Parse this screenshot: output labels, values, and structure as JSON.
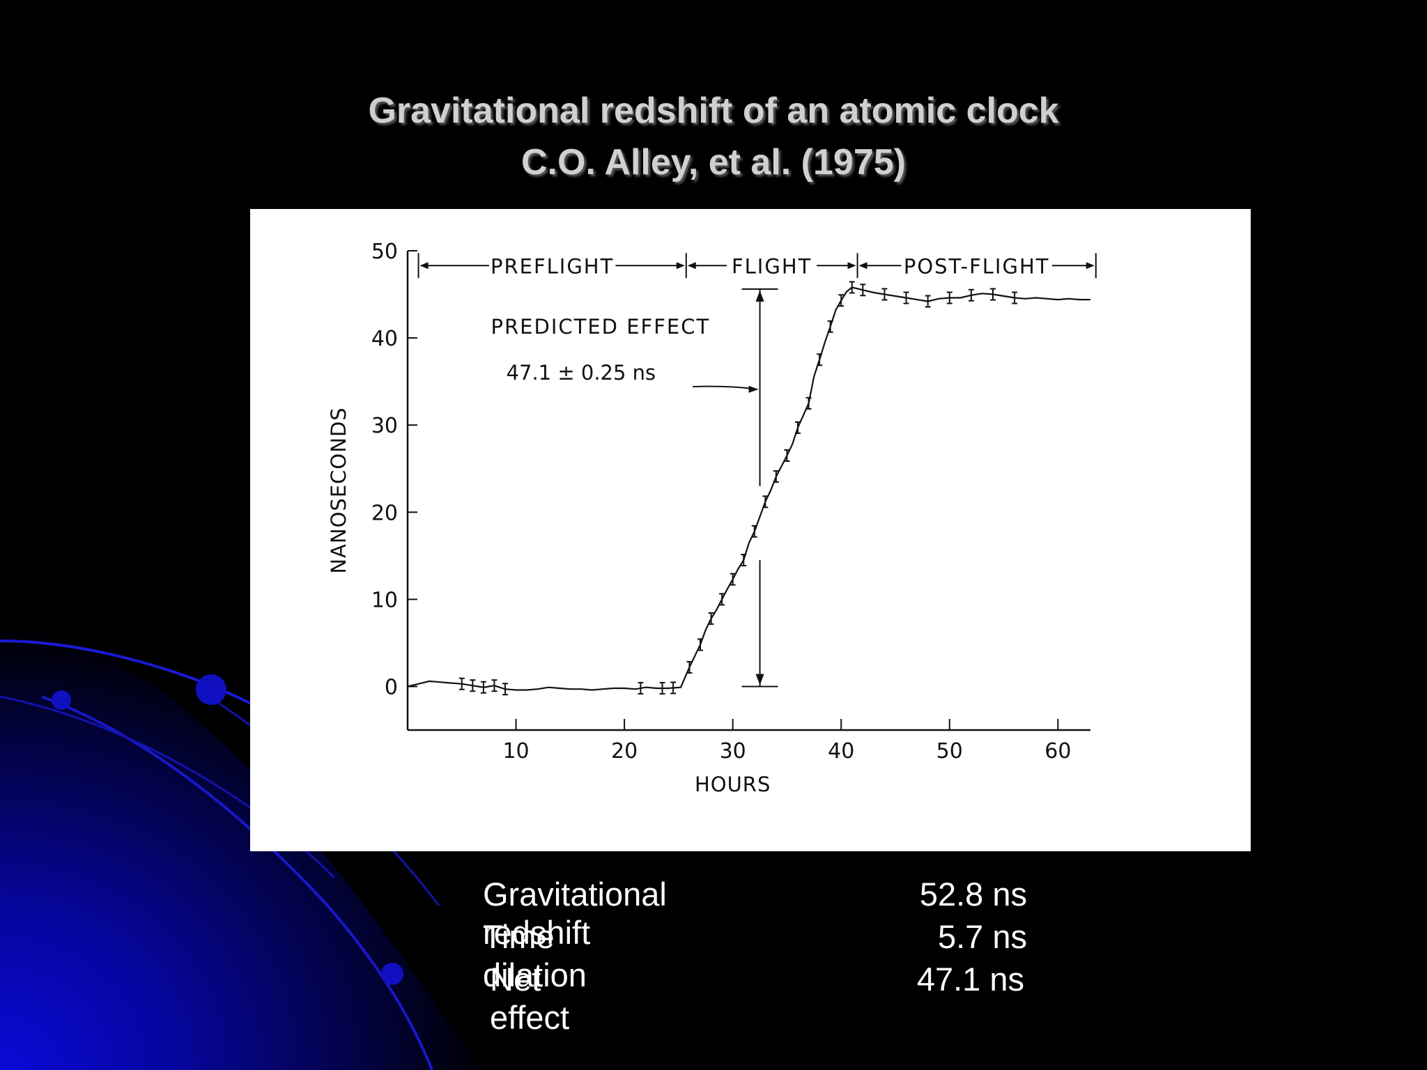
{
  "slide": {
    "title_line1": "Gravitational redshift of an atomic clock",
    "title_line2": "C.O. Alley, et al. (1975)"
  },
  "colors": {
    "background": "#000000",
    "accent": "#0a0ad0",
    "title": "#d0d0d0",
    "text": "#ffffff",
    "panel": "#ffffff"
  },
  "chart_data": {
    "type": "line",
    "xlabel": "HOURS",
    "ylabel": "NANOSECONDS",
    "xlim": [
      0,
      63
    ],
    "ylim": [
      -5,
      50
    ],
    "xticks": [
      10,
      20,
      30,
      40,
      50,
      60
    ],
    "yticks": [
      0,
      10,
      20,
      30,
      40,
      50
    ],
    "grid": false,
    "phases": [
      {
        "label": "PREFLIGHT",
        "start": 1,
        "end": 25.7
      },
      {
        "label": "FLIGHT",
        "start": 25.7,
        "end": 41.5
      },
      {
        "label": "POST-FLIGHT",
        "start": 41.5,
        "end": 63.5
      }
    ],
    "annotation": {
      "text_line1": "PREDICTED EFFECT",
      "text_line2": "47.1 ± 0.25 ns",
      "x": 32.5,
      "y_from": 0,
      "y_to": 45.6
    },
    "series": [
      {
        "x": [
          0,
          1,
          2,
          3,
          4,
          5,
          6,
          7,
          8,
          9,
          10,
          11,
          12,
          13,
          14,
          15,
          16,
          17,
          18,
          19,
          20,
          21,
          22,
          23,
          24,
          25.2,
          26,
          26.5,
          27,
          27.5,
          28,
          28.5,
          29,
          29.5,
          30,
          30.5,
          31,
          31.5,
          32,
          32.5,
          33,
          33.5,
          34,
          34.5,
          35,
          35.5,
          36,
          36.5,
          37,
          37.5,
          38,
          38.5,
          39,
          39.5,
          40,
          40.5,
          41,
          42,
          43,
          44,
          45,
          46,
          47,
          48,
          49,
          50,
          51,
          52,
          53,
          54,
          55,
          56,
          57,
          58,
          59,
          60,
          61,
          62,
          63
        ],
        "y": [
          0,
          0.3,
          0.6,
          0.5,
          0.4,
          0.3,
          0.1,
          -0.1,
          0.1,
          -0.3,
          -0.4,
          -0.4,
          -0.3,
          -0.1,
          -0.2,
          -0.3,
          -0.3,
          -0.4,
          -0.3,
          -0.2,
          -0.2,
          -0.3,
          -0.1,
          -0.2,
          -0.2,
          -0.1,
          2.2,
          3.5,
          4.8,
          6.5,
          7.8,
          8.8,
          10,
          11.2,
          12.3,
          13.5,
          14.5,
          16.5,
          17.8,
          19.5,
          21.2,
          22.5,
          24.1,
          25.3,
          26.5,
          27.8,
          29.7,
          31.1,
          32.5,
          35.6,
          37.5,
          39.5,
          41.3,
          43.2,
          44.3,
          45.3,
          45.8,
          45.5,
          45.2,
          45.0,
          44.8,
          44.6,
          44.4,
          44.2,
          44.5,
          44.6,
          44.6,
          44.9,
          45.1,
          45.0,
          44.8,
          44.6,
          44.5,
          44.6,
          44.5,
          44.4,
          44.5,
          44.4,
          44.4
        ]
      }
    ],
    "error_bar_points": [
      5,
      6,
      7,
      8,
      9,
      21.5,
      23.5,
      24.5,
      26,
      27,
      28,
      29,
      30,
      31,
      32,
      33,
      34,
      35,
      36,
      37,
      38,
      39,
      40,
      41,
      42,
      44,
      46,
      48,
      50,
      52,
      54,
      56
    ]
  },
  "summary": [
    {
      "label": "Gravitational redshift",
      "value": "52.8 ns"
    },
    {
      "label": "Time dilation",
      "value": "5.7 ns"
    },
    {
      "label": "Net effect",
      "value": "47.1 ns"
    }
  ]
}
